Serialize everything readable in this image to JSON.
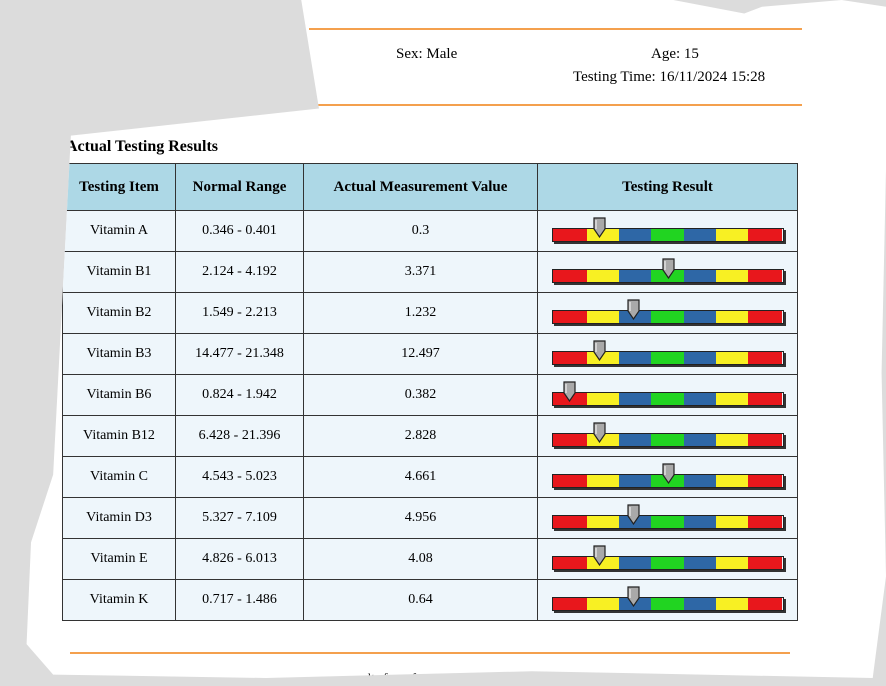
{
  "header": {
    "sex": "Sex: Male",
    "age": "Age: 15",
    "testing_time": "Testing Time: 16/11/2024 15:28"
  },
  "section_title": "Actual Testing Results",
  "table": {
    "columns": [
      "Testing Item",
      "Normal Range",
      "Actual Measurement Value",
      "Testing Result"
    ],
    "rows": [
      {
        "item": "Vitamin A",
        "range": "0.346 - 0.401",
        "value": "0.3",
        "marker_position": 0.2
      },
      {
        "item": "Vitamin B1",
        "range": "2.124 - 4.192",
        "value": "3.371",
        "marker_position": 0.5
      },
      {
        "item": "Vitamin B2",
        "range": "1.549 - 2.213",
        "value": "1.232",
        "marker_position": 0.35
      },
      {
        "item": "Vitamin B3",
        "range": "14.477 - 21.348",
        "value": "12.497",
        "marker_position": 0.2
      },
      {
        "item": "Vitamin B6",
        "range": "0.824 - 1.942",
        "value": "0.382",
        "marker_position": 0.07
      },
      {
        "item": "Vitamin B12",
        "range": "6.428 - 21.396",
        "value": "2.828",
        "marker_position": 0.2
      },
      {
        "item": "Vitamin C",
        "range": "4.543 - 5.023",
        "value": "4.661",
        "marker_position": 0.5
      },
      {
        "item": "Vitamin D3",
        "range": "5.327 - 7.109",
        "value": "4.956",
        "marker_position": 0.35
      },
      {
        "item": "Vitamin E",
        "range": "4.826 - 6.013",
        "value": "4.08",
        "marker_position": 0.2
      },
      {
        "item": "Vitamin K",
        "range": "0.717 - 1.486",
        "value": "0.64",
        "marker_position": 0.35
      }
    ]
  },
  "scale_segments": [
    {
      "color": "red",
      "weight": 15
    },
    {
      "color": "yellow",
      "weight": 14
    },
    {
      "color": "blue",
      "weight": 14
    },
    {
      "color": "green",
      "weight": 14
    },
    {
      "color": "blue",
      "weight": 14
    },
    {
      "color": "yellow",
      "weight": 14
    },
    {
      "color": "red",
      "weight": 15
    }
  ],
  "colors": {
    "accent_rule": "#f4a04d",
    "header_bg": "#add8e6",
    "cell_bg": "#eef6fb",
    "red": "#e8171c",
    "yellow": "#f8f023",
    "blue": "#2e67a6",
    "green": "#21d421",
    "marker": "#a9a9a9"
  },
  "footnote": "results for reference only"
}
